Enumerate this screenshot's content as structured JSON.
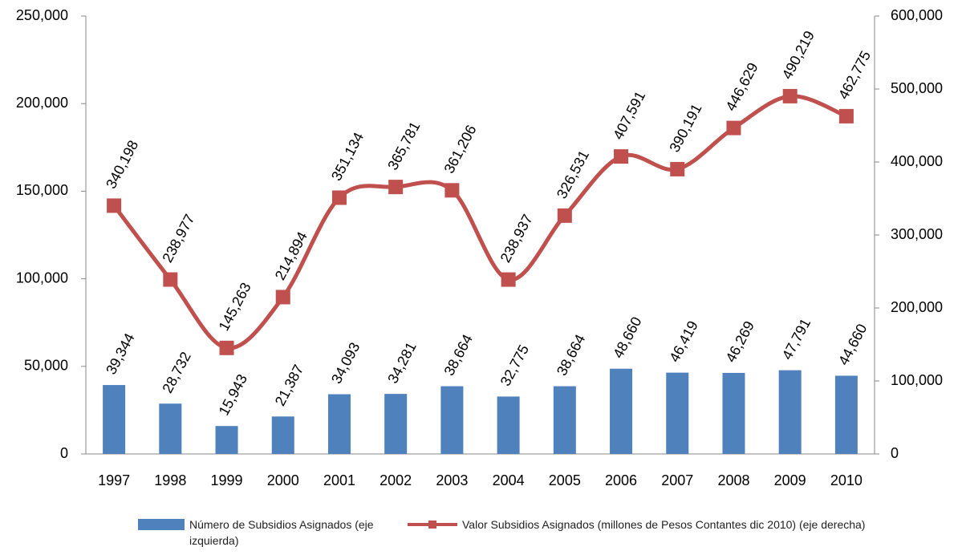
{
  "chart_data": {
    "type": "bar+line",
    "categories": [
      "1997",
      "1998",
      "1999",
      "2000",
      "2001",
      "2002",
      "2003",
      "2004",
      "2005",
      "2006",
      "2007",
      "2008",
      "2009",
      "2010"
    ],
    "series": [
      {
        "name": "Número de Subsidios Asignados (eje izquierda)",
        "type": "bar",
        "color": "#4f81bd",
        "axis": "y",
        "values": [
          39344,
          28732,
          15943,
          21387,
          34093,
          34281,
          38664,
          32775,
          38664,
          48660,
          46419,
          46269,
          47791,
          44660
        ],
        "value_labels": [
          "39,344",
          "28,732",
          "15,943",
          "21,387",
          "34,093",
          "34,281",
          "38,664",
          "32,775",
          "38,664",
          "48,660",
          "46,419",
          "46,269",
          "47,791",
          "44,660"
        ]
      },
      {
        "name": "Valor Subsidios Asignados (millones de Pesos Contantes dic 2010) (eje derecha)",
        "type": "line",
        "color": "#c0504d",
        "axis": "y2",
        "values": [
          340198,
          238977,
          145263,
          214894,
          351134,
          365781,
          361206,
          238937,
          326531,
          407591,
          390191,
          446629,
          490219,
          462775
        ],
        "value_labels": [
          "340,198",
          "238,977",
          "145,263",
          "214,894",
          "351,134",
          "365,781",
          "361,206",
          "238,937",
          "326,531",
          "407,591",
          "390,191",
          "446,629",
          "490,219",
          "462,775"
        ]
      }
    ],
    "ylim": [
      0,
      250000
    ],
    "yticks": [
      0,
      {
        "value": 50000,
        "label": "50,000"
      },
      {
        "value": 100000,
        "label": "100,000"
      },
      {
        "value": 150000,
        "label": "150,000"
      },
      {
        "value": 200000,
        "label": "200,000"
      },
      {
        "value": 250000,
        "label": "250,000"
      }
    ],
    "y2lim": [
      0,
      600000
    ],
    "y2ticks": [
      0,
      {
        "value": 100000,
        "label": "100,000"
      },
      {
        "value": 200000,
        "label": "200,000"
      },
      {
        "value": 300000,
        "label": "300,000"
      },
      {
        "value": 400000,
        "label": "400,000"
      },
      {
        "value": 500000,
        "label": "500,000"
      },
      {
        "value": 600000,
        "label": "600,000"
      }
    ],
    "grid": false,
    "smooth": true,
    "legend": "bottom"
  }
}
